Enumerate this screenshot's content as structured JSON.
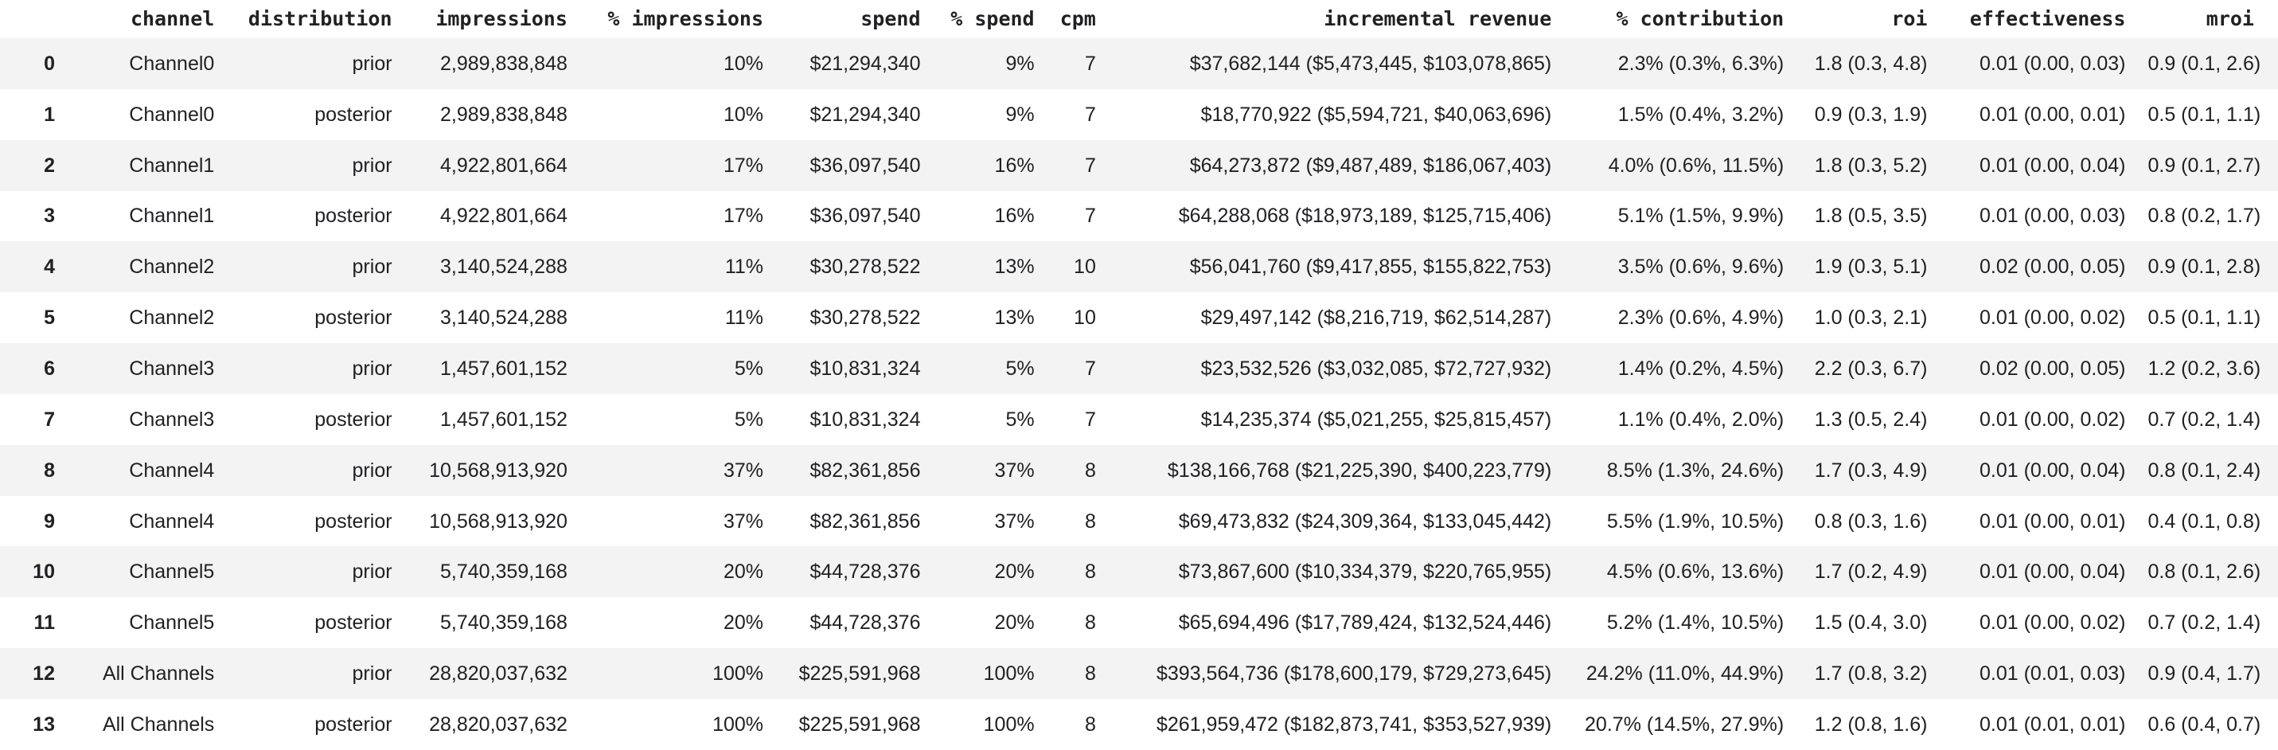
{
  "colors": {
    "stripe_background": "#f3f3f3",
    "row_background": "#ffffff",
    "text": "#202124",
    "header_text": "#202124"
  },
  "chart_data": {
    "type": "table",
    "title": "",
    "corner_label": "",
    "columns": [
      "channel",
      "distribution",
      "impressions",
      "% impressions",
      "spend",
      "% spend",
      "cpm",
      "incremental revenue",
      "% contribution",
      "roi",
      "effectiveness",
      "mroi"
    ],
    "index": [
      "0",
      "1",
      "2",
      "3",
      "4",
      "5",
      "6",
      "7",
      "8",
      "9",
      "10",
      "11",
      "12",
      "13"
    ],
    "rows": [
      [
        "Channel0",
        "prior",
        "2,989,838,848",
        "10%",
        "$21,294,340",
        "9%",
        "7",
        "$37,682,144 ($5,473,445, $103,078,865)",
        "2.3% (0.3%, 6.3%)",
        "1.8 (0.3, 4.8)",
        "0.01 (0.00, 0.03)",
        "0.9 (0.1, 2.6)"
      ],
      [
        "Channel0",
        "posterior",
        "2,989,838,848",
        "10%",
        "$21,294,340",
        "9%",
        "7",
        "$18,770,922 ($5,594,721, $40,063,696)",
        "1.5% (0.4%, 3.2%)",
        "0.9 (0.3, 1.9)",
        "0.01 (0.00, 0.01)",
        "0.5 (0.1, 1.1)"
      ],
      [
        "Channel1",
        "prior",
        "4,922,801,664",
        "17%",
        "$36,097,540",
        "16%",
        "7",
        "$64,273,872 ($9,487,489, $186,067,403)",
        "4.0% (0.6%, 11.5%)",
        "1.8 (0.3, 5.2)",
        "0.01 (0.00, 0.04)",
        "0.9 (0.1, 2.7)"
      ],
      [
        "Channel1",
        "posterior",
        "4,922,801,664",
        "17%",
        "$36,097,540",
        "16%",
        "7",
        "$64,288,068 ($18,973,189, $125,715,406)",
        "5.1% (1.5%, 9.9%)",
        "1.8 (0.5, 3.5)",
        "0.01 (0.00, 0.03)",
        "0.8 (0.2, 1.7)"
      ],
      [
        "Channel2",
        "prior",
        "3,140,524,288",
        "11%",
        "$30,278,522",
        "13%",
        "10",
        "$56,041,760 ($9,417,855, $155,822,753)",
        "3.5% (0.6%, 9.6%)",
        "1.9 (0.3, 5.1)",
        "0.02 (0.00, 0.05)",
        "0.9 (0.1, 2.8)"
      ],
      [
        "Channel2",
        "posterior",
        "3,140,524,288",
        "11%",
        "$30,278,522",
        "13%",
        "10",
        "$29,497,142 ($8,216,719, $62,514,287)",
        "2.3% (0.6%, 4.9%)",
        "1.0 (0.3, 2.1)",
        "0.01 (0.00, 0.02)",
        "0.5 (0.1, 1.1)"
      ],
      [
        "Channel3",
        "prior",
        "1,457,601,152",
        "5%",
        "$10,831,324",
        "5%",
        "7",
        "$23,532,526 ($3,032,085, $72,727,932)",
        "1.4% (0.2%, 4.5%)",
        "2.2 (0.3, 6.7)",
        "0.02 (0.00, 0.05)",
        "1.2 (0.2, 3.6)"
      ],
      [
        "Channel3",
        "posterior",
        "1,457,601,152",
        "5%",
        "$10,831,324",
        "5%",
        "7",
        "$14,235,374 ($5,021,255, $25,815,457)",
        "1.1% (0.4%, 2.0%)",
        "1.3 (0.5, 2.4)",
        "0.01 (0.00, 0.02)",
        "0.7 (0.2, 1.4)"
      ],
      [
        "Channel4",
        "prior",
        "10,568,913,920",
        "37%",
        "$82,361,856",
        "37%",
        "8",
        "$138,166,768 ($21,225,390, $400,223,779)",
        "8.5% (1.3%, 24.6%)",
        "1.7 (0.3, 4.9)",
        "0.01 (0.00, 0.04)",
        "0.8 (0.1, 2.4)"
      ],
      [
        "Channel4",
        "posterior",
        "10,568,913,920",
        "37%",
        "$82,361,856",
        "37%",
        "8",
        "$69,473,832 ($24,309,364, $133,045,442)",
        "5.5% (1.9%, 10.5%)",
        "0.8 (0.3, 1.6)",
        "0.01 (0.00, 0.01)",
        "0.4 (0.1, 0.8)"
      ],
      [
        "Channel5",
        "prior",
        "5,740,359,168",
        "20%",
        "$44,728,376",
        "20%",
        "8",
        "$73,867,600 ($10,334,379, $220,765,955)",
        "4.5% (0.6%, 13.6%)",
        "1.7 (0.2, 4.9)",
        "0.01 (0.00, 0.04)",
        "0.8 (0.1, 2.6)"
      ],
      [
        "Channel5",
        "posterior",
        "5,740,359,168",
        "20%",
        "$44,728,376",
        "20%",
        "8",
        "$65,694,496 ($17,789,424, $132,524,446)",
        "5.2% (1.4%, 10.5%)",
        "1.5 (0.4, 3.0)",
        "0.01 (0.00, 0.02)",
        "0.7 (0.2, 1.4)"
      ],
      [
        "All Channels",
        "prior",
        "28,820,037,632",
        "100%",
        "$225,591,968",
        "100%",
        "8",
        "$393,564,736 ($178,600,179, $729,273,645)",
        "24.2% (11.0%, 44.9%)",
        "1.7 (0.8, 3.2)",
        "0.01 (0.01, 0.03)",
        "0.9 (0.4, 1.7)"
      ],
      [
        "All Channels",
        "posterior",
        "28,820,037,632",
        "100%",
        "$225,591,968",
        "100%",
        "8",
        "$261,959,472 ($182,873,741, $353,527,939)",
        "20.7% (14.5%, 27.9%)",
        "1.2 (0.8, 1.6)",
        "0.01 (0.01, 0.01)",
        "0.6 (0.4, 0.7)"
      ]
    ]
  }
}
